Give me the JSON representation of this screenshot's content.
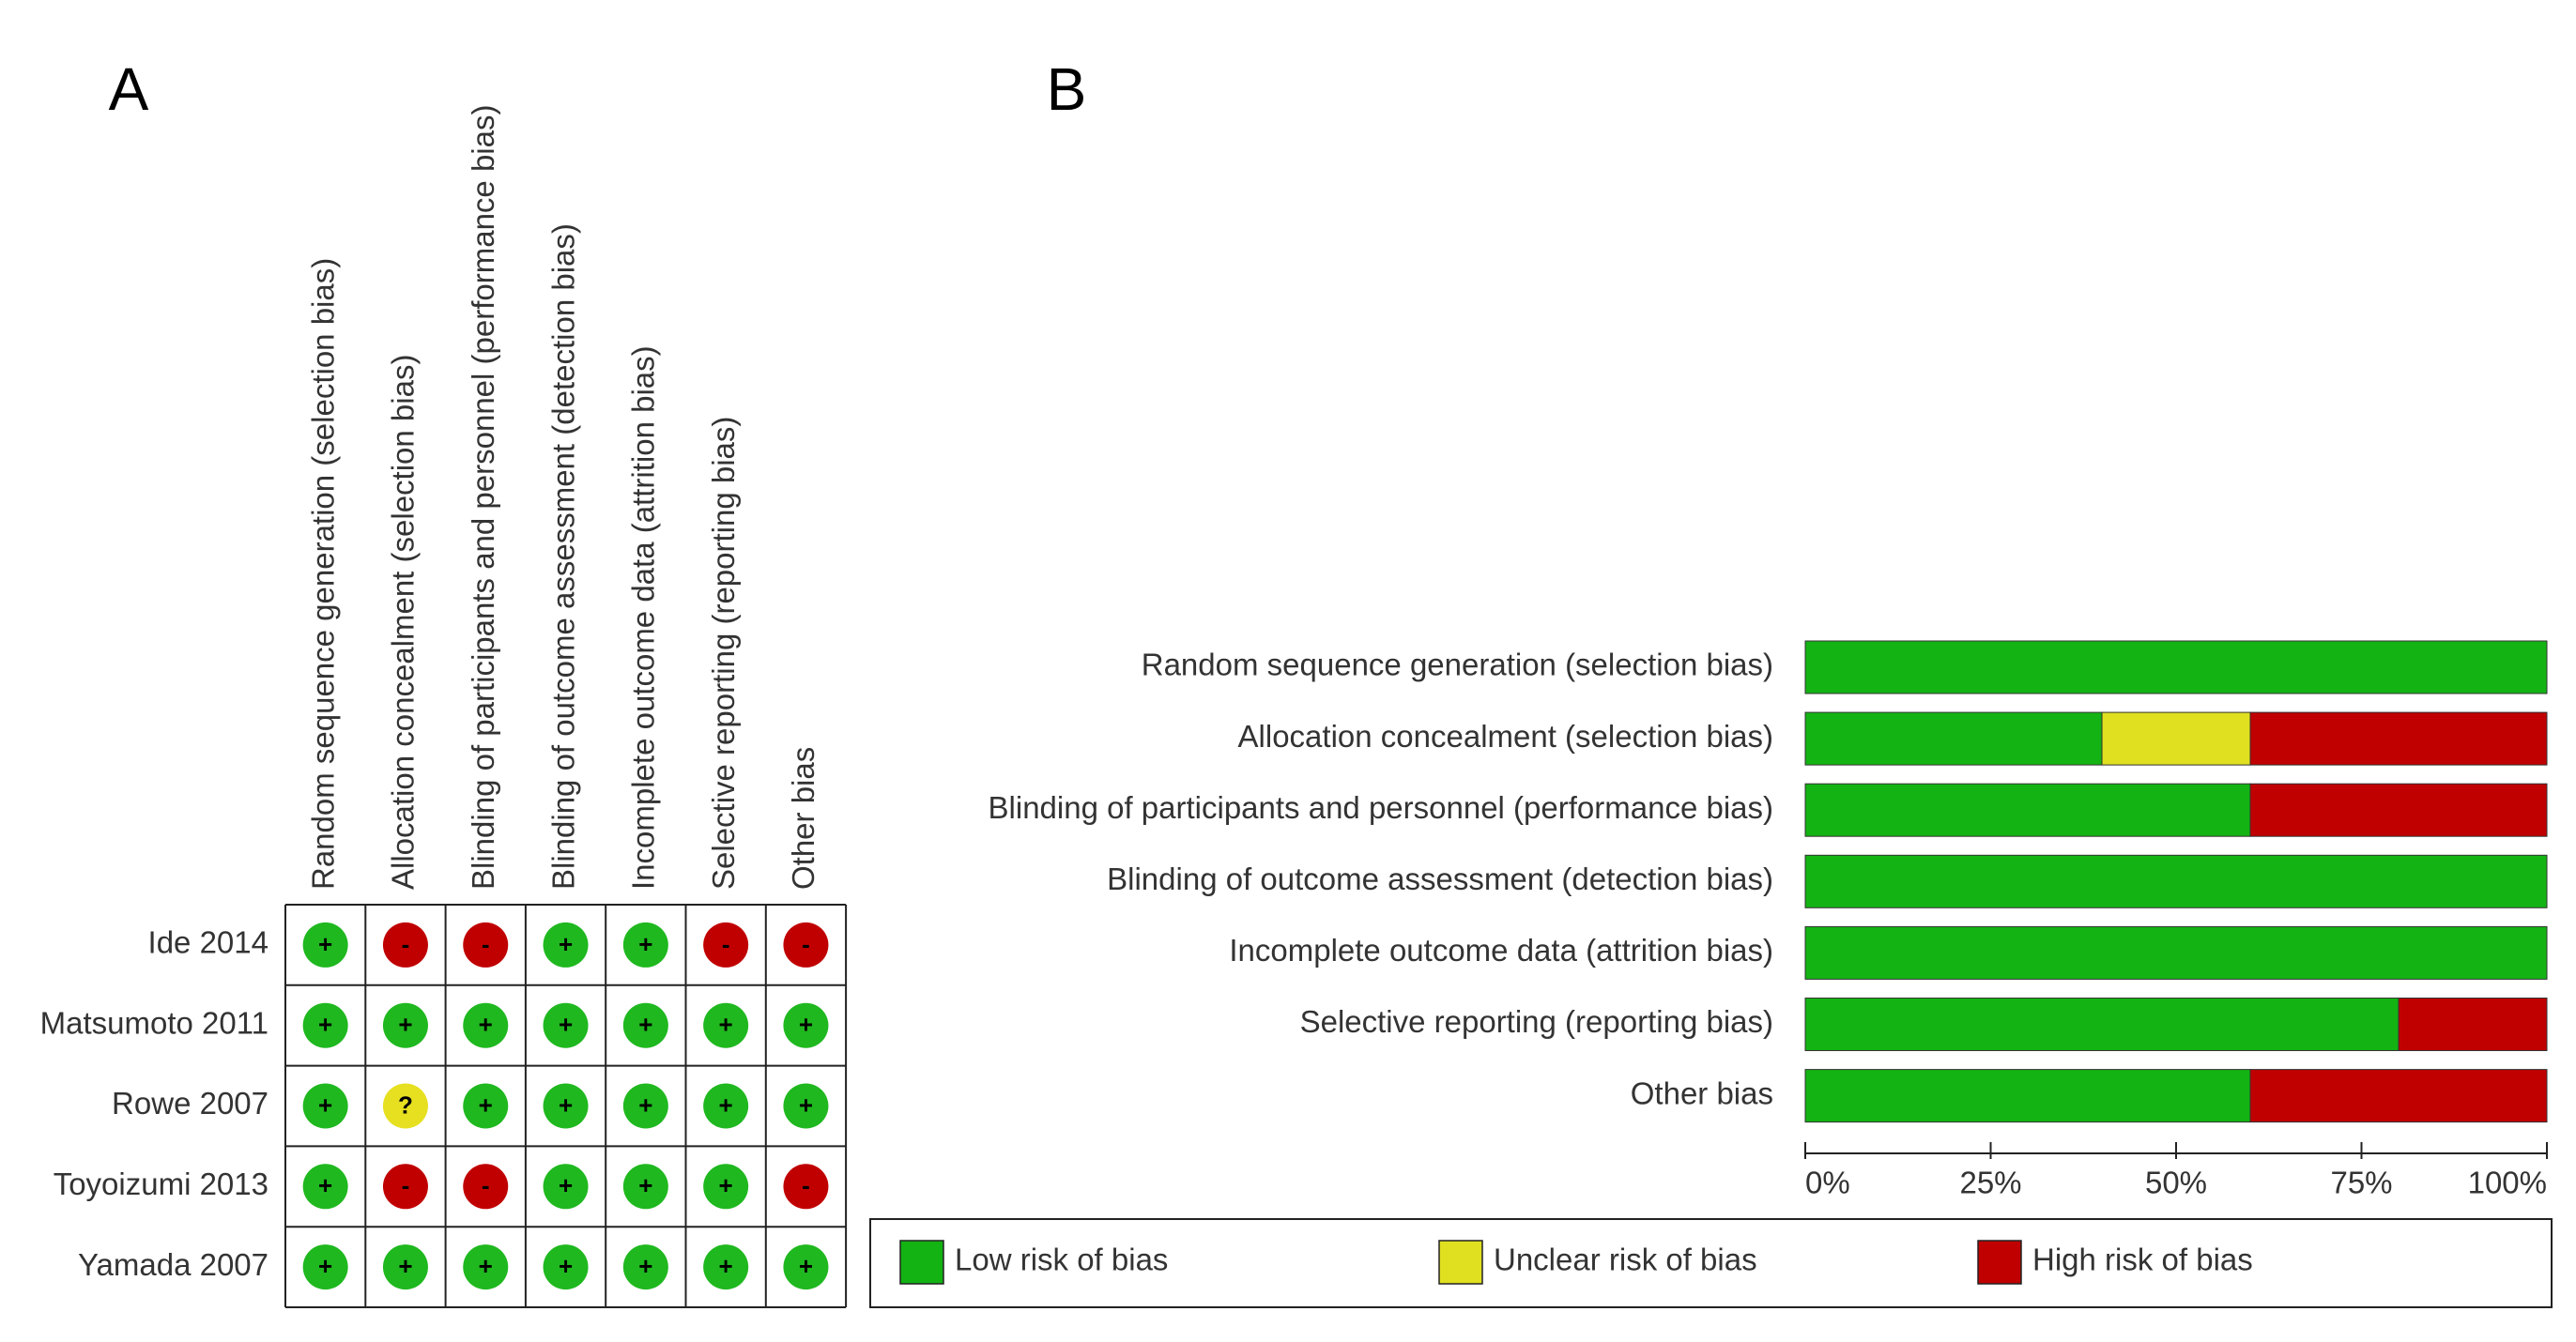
{
  "chart_data": [
    {
      "type": "table",
      "label": "A",
      "columns": [
        "Random sequence generation (selection bias)",
        "Allocation concealment (selection bias)",
        "Blinding of participants and personnel (performance bias)",
        "Blinding of outcome assessment (detection bias)",
        "Incomplete outcome data (attrition bias)",
        "Selective reporting (reporting bias)",
        "Other bias"
      ],
      "rows": [
        {
          "name": "Ide 2014",
          "judgments": [
            "+",
            "-",
            "-",
            "+",
            "+",
            "-",
            "-"
          ]
        },
        {
          "name": "Matsumoto 2011",
          "judgments": [
            "+",
            "+",
            "+",
            "+",
            "+",
            "+",
            "+"
          ]
        },
        {
          "name": "Rowe 2007",
          "judgments": [
            "+",
            "?",
            "+",
            "+",
            "+",
            "+",
            "+"
          ]
        },
        {
          "name": "Toyoizumi 2013",
          "judgments": [
            "+",
            "-",
            "-",
            "+",
            "+",
            "+",
            "-"
          ]
        },
        {
          "name": "Yamada 2007",
          "judgments": [
            "+",
            "+",
            "+",
            "+",
            "+",
            "+",
            "+"
          ]
        }
      ],
      "judgment_colors": {
        "+": "#1fb81f",
        "-": "#c00000",
        "?": "#e6e020"
      }
    },
    {
      "type": "bar",
      "label": "B",
      "orientation": "horizontal",
      "stacked": true,
      "categories": [
        "Random sequence generation (selection bias)",
        "Allocation concealment (selection bias)",
        "Blinding of participants and personnel (performance bias)",
        "Blinding of outcome assessment (detection bias)",
        "Incomplete outcome data (attrition bias)",
        "Selective reporting (reporting bias)",
        "Other bias"
      ],
      "series": [
        {
          "name": "Low risk of bias",
          "color": "#13b313",
          "values": [
            100,
            40,
            60,
            100,
            100,
            80,
            60
          ]
        },
        {
          "name": "Unclear risk of bias",
          "color": "#e0e020",
          "values": [
            0,
            20,
            0,
            0,
            0,
            0,
            0
          ]
        },
        {
          "name": "High risk of bias",
          "color": "#c00000",
          "values": [
            0,
            40,
            40,
            0,
            0,
            20,
            40
          ]
        }
      ],
      "xlim": [
        0,
        100
      ],
      "xticks": [
        {
          "value": 0,
          "label": "0%"
        },
        {
          "value": 25,
          "label": "25%"
        },
        {
          "value": 50,
          "label": "50%"
        },
        {
          "value": 75,
          "label": "75%"
        },
        {
          "value": 100,
          "label": "100%"
        }
      ],
      "legend": "bottom"
    }
  ]
}
